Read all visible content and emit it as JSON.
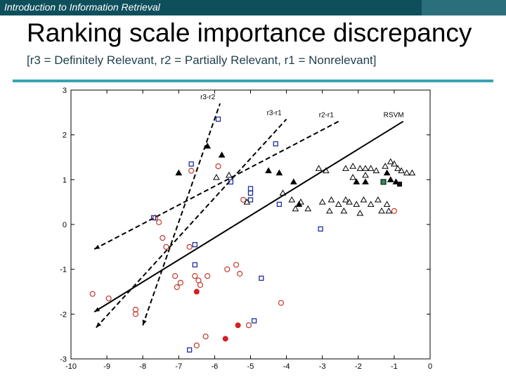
{
  "header": {
    "course": "Introduction to Information Retrieval",
    "title": "Ranking scale importance discrepancy",
    "subtitle": "[r3 = Definitely Relevant, r2 = Partially Relevant, r1 = Nonrelevant]"
  },
  "colors": {
    "topbar": "#0f4f5c",
    "accent_rule": "#3aa3b5",
    "circle": "#c0392b",
    "square": "#1f2f9f",
    "special_square": "#2e8b57"
  },
  "chart_data": {
    "type": "scatter",
    "title": "",
    "xlabel": "",
    "ylabel": "",
    "xlim": [
      -10,
      0
    ],
    "ylim": [
      -3,
      3
    ],
    "xticks": [
      "-10",
      "-9",
      "-8",
      "-7",
      "-6",
      "-5",
      "-4",
      "-3",
      "-2",
      "-1",
      "0"
    ],
    "yticks": [
      "3",
      "2",
      "1",
      "0",
      "-1",
      "-2",
      "-3"
    ],
    "lines": [
      {
        "name": "r3-r2",
        "style": "dashed",
        "from": [
          -8.0,
          -2.25
        ],
        "to": [
          -5.85,
          2.7
        ]
      },
      {
        "name": "r3-r1",
        "style": "dashed",
        "from": [
          -9.3,
          -2.3
        ],
        "to": [
          -4.0,
          2.35
        ]
      },
      {
        "name": "r2-r1",
        "style": "dashed",
        "from": [
          -9.35,
          -0.55
        ],
        "to": [
          -2.55,
          2.3
        ]
      },
      {
        "name": "RSVM",
        "style": "solid",
        "from": [
          -9.35,
          -1.95
        ],
        "to": [
          -0.75,
          2.3
        ]
      }
    ],
    "series": [
      {
        "name": "r3 (circle)",
        "marker": "circle-open",
        "points": [
          [
            -9.4,
            -1.55
          ],
          [
            -8.95,
            -1.65
          ],
          [
            -8.2,
            -1.9
          ],
          [
            -8.2,
            -2.0
          ],
          [
            -7.65,
            0.15
          ],
          [
            -7.55,
            0.05
          ],
          [
            -7.45,
            -0.3
          ],
          [
            -7.35,
            -0.5
          ],
          [
            -7.1,
            -1.15
          ],
          [
            -7.05,
            -1.4
          ],
          [
            -6.95,
            -1.3
          ],
          [
            -6.7,
            -0.5
          ],
          [
            -6.55,
            -1.15
          ],
          [
            -6.45,
            -1.25
          ],
          [
            -6.4,
            -1.35
          ],
          [
            -6.2,
            -1.15
          ],
          [
            -6.65,
            1.2
          ],
          [
            -5.9,
            1.3
          ],
          [
            -5.65,
            -1.0
          ],
          [
            -5.4,
            -0.9
          ],
          [
            -5.3,
            -1.1
          ],
          [
            -5.2,
            0.55
          ],
          [
            -4.15,
            -1.75
          ],
          [
            -6.5,
            -2.7
          ],
          [
            -6.25,
            -2.5
          ],
          [
            -5.05,
            -2.25
          ],
          [
            -1.0,
            0.3
          ]
        ]
      },
      {
        "name": "r3 (filled)",
        "marker": "circle-filled",
        "points": [
          [
            -6.5,
            -1.5
          ],
          [
            -5.35,
            -2.25
          ],
          [
            -5.7,
            -2.55
          ]
        ]
      },
      {
        "name": "r2 (square)",
        "marker": "square-open",
        "points": [
          [
            -7.7,
            0.15
          ],
          [
            -6.65,
            1.35
          ],
          [
            -6.55,
            -0.45
          ],
          [
            -6.55,
            -0.9
          ],
          [
            -5.9,
            2.35
          ],
          [
            -5.55,
            0.95
          ],
          [
            -5.0,
            0.8
          ],
          [
            -5.0,
            0.7
          ],
          [
            -5.0,
            0.55
          ],
          [
            -4.7,
            -1.2
          ],
          [
            -4.3,
            1.8
          ],
          [
            -4.2,
            0.45
          ],
          [
            -3.05,
            -0.1
          ],
          [
            -6.7,
            -2.8
          ],
          [
            -4.9,
            -2.15
          ]
        ]
      },
      {
        "name": "r2 (filled square)",
        "marker": "square-filled",
        "points": [
          [
            -0.85,
            0.9
          ]
        ]
      },
      {
        "name": "special",
        "marker": "square-green",
        "points": [
          [
            -1.3,
            0.95
          ]
        ]
      },
      {
        "name": "r1 (triangle)",
        "marker": "triangle-open",
        "points": [
          [
            -5.95,
            1.05
          ],
          [
            -5.6,
            1.1
          ],
          [
            -5.1,
            0.5
          ],
          [
            -4.1,
            0.7
          ],
          [
            -3.85,
            0.55
          ],
          [
            -3.6,
            0.5
          ],
          [
            -3.0,
            0.5
          ],
          [
            -2.75,
            0.55
          ],
          [
            -2.55,
            0.45
          ],
          [
            -2.35,
            0.55
          ],
          [
            -2.25,
            0.5
          ],
          [
            -2.05,
            0.45
          ],
          [
            -1.85,
            0.55
          ],
          [
            -1.65,
            0.45
          ],
          [
            -1.45,
            0.55
          ],
          [
            -1.2,
            0.45
          ],
          [
            -3.1,
            1.25
          ],
          [
            -2.9,
            1.2
          ],
          [
            -2.35,
            1.25
          ],
          [
            -2.15,
            1.3
          ],
          [
            -1.95,
            1.25
          ],
          [
            -1.8,
            1.25
          ],
          [
            -1.65,
            1.25
          ],
          [
            -1.5,
            1.2
          ],
          [
            -1.25,
            1.3
          ],
          [
            -1.1,
            1.4
          ],
          [
            -1.0,
            1.35
          ],
          [
            -0.9,
            1.25
          ],
          [
            -0.8,
            1.2
          ],
          [
            -0.65,
            1.15
          ],
          [
            -0.5,
            1.15
          ],
          [
            -3.75,
            0.35
          ],
          [
            -3.4,
            0.35
          ],
          [
            -2.8,
            0.3
          ],
          [
            -2.4,
            0.3
          ],
          [
            -1.95,
            0.25
          ],
          [
            -1.35,
            0.3
          ],
          [
            -1.15,
            0.3
          ],
          [
            -1.8,
            1.1
          ],
          [
            -2.15,
            1.05
          ]
        ]
      },
      {
        "name": "r1 (filled triangle)",
        "marker": "triangle-filled",
        "points": [
          [
            -7.0,
            1.15
          ],
          [
            -6.2,
            1.75
          ],
          [
            -5.8,
            1.55
          ],
          [
            -4.5,
            1.2
          ],
          [
            -4.2,
            1.15
          ],
          [
            -3.8,
            0.95
          ],
          [
            -3.65,
            0.45
          ],
          [
            -2.05,
            0.95
          ],
          [
            -1.8,
            0.95
          ],
          [
            -1.1,
            1.0
          ],
          [
            -0.95,
            0.95
          ],
          [
            -1.2,
            1.15
          ]
        ]
      }
    ]
  }
}
